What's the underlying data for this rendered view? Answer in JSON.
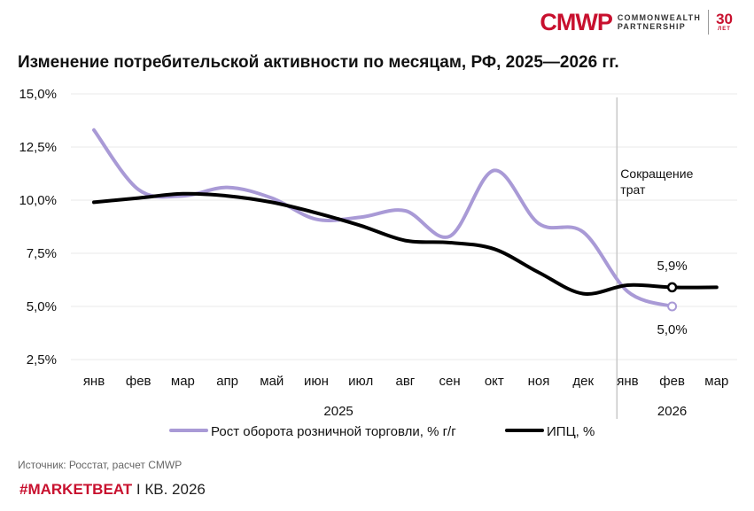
{
  "header": {
    "logo_mark": "CMWP",
    "logo_line1": "COMMONWEALTH",
    "logo_line2": "PARTNERSHIP",
    "logo_years": "30",
    "logo_years_unit": "ЛЕТ"
  },
  "title": "Изменение потребительской активности по месяцам, РФ, 2025—2026 гг.",
  "source": "Источник: Росстат, расчет CMWP",
  "footer": {
    "brand": "#MARKETBEAT",
    "period": "I КВ. 2026"
  },
  "colors": {
    "retail": "#a99ad6",
    "cpi": "#000000",
    "divider": "#c8c8c8",
    "grid": "#e8e8e8",
    "brand": "#c8102e"
  },
  "chart_data": {
    "type": "line",
    "categories": [
      "янв",
      "фев",
      "мар",
      "апр",
      "май",
      "июн",
      "июл",
      "авг",
      "сен",
      "окт",
      "ноя",
      "дек",
      "янв",
      "фев",
      "мар"
    ],
    "year_groups": [
      {
        "label": "2025",
        "start": 0,
        "end": 11
      },
      {
        "label": "2026",
        "start": 12,
        "end": 14
      }
    ],
    "yticks": [
      "2,5%",
      "5,0%",
      "7,5%",
      "10,0%",
      "12,5%",
      "15,0%"
    ],
    "ytick_values": [
      2.5,
      5.0,
      7.5,
      10.0,
      12.5,
      15.0
    ],
    "ylim": [
      2.5,
      15.0
    ],
    "series": [
      {
        "name": "Рост оборота розничной торговли, % г/г",
        "values": [
          13.3,
          10.5,
          10.2,
          10.6,
          10.1,
          9.1,
          9.2,
          9.5,
          8.3,
          11.4,
          8.9,
          8.5,
          5.7,
          5.0,
          null
        ]
      },
      {
        "name": "ИПЦ, %",
        "values": [
          9.9,
          10.1,
          10.3,
          10.2,
          9.9,
          9.4,
          8.8,
          8.1,
          8.0,
          7.7,
          6.6,
          5.6,
          6.0,
          5.9,
          5.9
        ]
      }
    ],
    "annotations": {
      "divider_text_line1": "Сокращение",
      "divider_text_line2": "трат",
      "retail_last_label": "5,0%",
      "cpi_last_label": "5,9%"
    },
    "legend_position": "bottom",
    "grid": true
  }
}
